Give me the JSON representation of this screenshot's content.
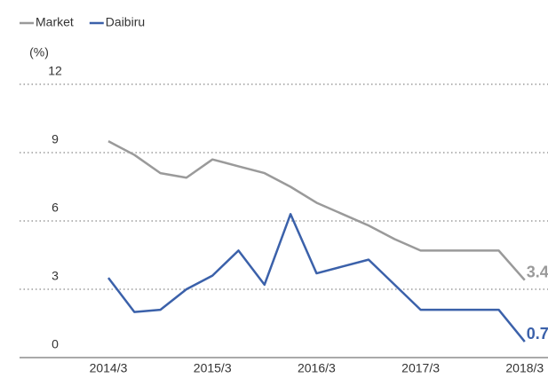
{
  "chart_data": {
    "type": "line",
    "y_label": "(%)",
    "categories": [
      "2014/3",
      null,
      null,
      null,
      "2015/3",
      null,
      null,
      null,
      "2016/3",
      null,
      null,
      null,
      "2017/3",
      null,
      null,
      null,
      "2018/3"
    ],
    "series": [
      {
        "name": "Market",
        "color": "#9a9a9a",
        "values": [
          9.5,
          8.9,
          8.1,
          7.9,
          8.7,
          8.4,
          8.1,
          7.5,
          6.8,
          6.3,
          5.8,
          5.2,
          4.7,
          4.7,
          4.7,
          4.7,
          3.4
        ]
      },
      {
        "name": "Daibiru",
        "color": "#3b61aa",
        "values": [
          3.5,
          2.0,
          2.1,
          3.0,
          3.6,
          4.7,
          3.2,
          6.3,
          3.7,
          4.0,
          4.3,
          3.2,
          2.1,
          2.1,
          2.1,
          2.1,
          0.7
        ]
      }
    ],
    "ylim": [
      0,
      12
    ],
    "yticks": [
      0,
      3,
      6,
      9,
      12
    ],
    "grid": true,
    "legend": "top-left"
  }
}
